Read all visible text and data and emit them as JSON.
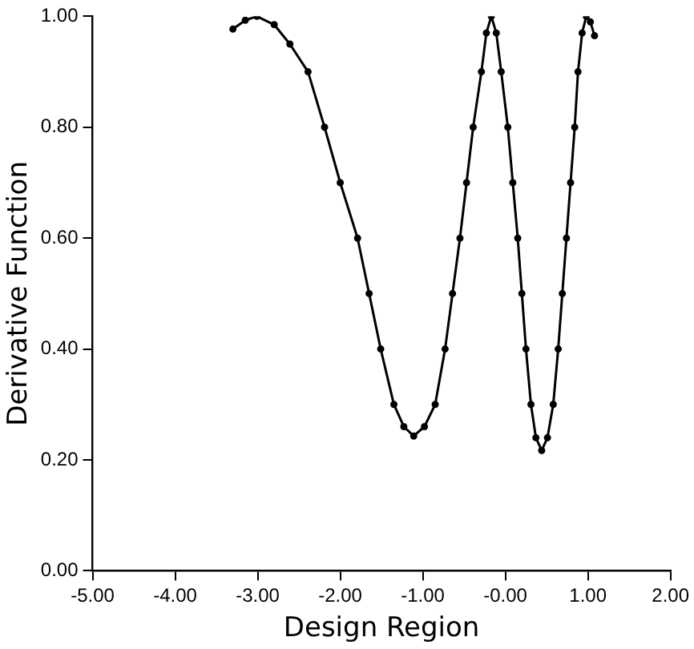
{
  "chart_data": {
    "type": "line",
    "xlabel": "Design Region",
    "ylabel": "Derivative Function",
    "xlim": [
      -5,
      2
    ],
    "ylim": [
      0,
      1
    ],
    "xticks": [
      {
        "value": -5,
        "label": "-5.00"
      },
      {
        "value": -4,
        "label": "-4.00"
      },
      {
        "value": -3,
        "label": "-3.00"
      },
      {
        "value": -2,
        "label": "-2.00"
      },
      {
        "value": -1,
        "label": "-1.00"
      },
      {
        "value": 0,
        "label": "-0.00"
      },
      {
        "value": 1,
        "label": "1.00"
      },
      {
        "value": 2,
        "label": "2.00"
      }
    ],
    "yticks": [
      {
        "value": 0,
        "label": "0.00"
      },
      {
        "value": 0.2,
        "label": "0.20"
      },
      {
        "value": 0.4,
        "label": "0.40"
      },
      {
        "value": 0.6,
        "label": "0.60"
      },
      {
        "value": 0.8,
        "label": "0.80"
      },
      {
        "value": 1,
        "label": "1.00"
      }
    ],
    "grid": false,
    "legend": false,
    "marker": "circle",
    "line_style": "solid",
    "series": [
      {
        "color": "#000000",
        "x": [
          -3.3,
          -3.15,
          -3.01,
          -2.8,
          -2.61,
          -2.39,
          -2.19,
          -2.0,
          -1.79,
          -1.65,
          -1.51,
          -1.35,
          -1.23,
          -1.11,
          -0.98,
          -0.85,
          -0.73,
          -0.64,
          -0.55,
          -0.47,
          -0.39,
          -0.29,
          -0.23,
          -0.17,
          -0.11,
          -0.05,
          0.03,
          0.09,
          0.15,
          0.2,
          0.25,
          0.31,
          0.37,
          0.44,
          0.51,
          0.58,
          0.64,
          0.69,
          0.74,
          0.79,
          0.84,
          0.88,
          0.93,
          0.98,
          1.03,
          1.08
        ],
        "values": [
          0.977,
          0.993,
          1.0,
          0.985,
          0.95,
          0.9,
          0.8,
          0.7,
          0.6,
          0.5,
          0.4,
          0.3,
          0.26,
          0.243,
          0.26,
          0.3,
          0.4,
          0.5,
          0.6,
          0.7,
          0.8,
          0.9,
          0.97,
          1.0,
          0.97,
          0.9,
          0.8,
          0.7,
          0.6,
          0.5,
          0.4,
          0.3,
          0.24,
          0.217,
          0.24,
          0.3,
          0.4,
          0.5,
          0.6,
          0.7,
          0.8,
          0.9,
          0.97,
          1.0,
          0.99,
          0.965
        ]
      }
    ]
  }
}
